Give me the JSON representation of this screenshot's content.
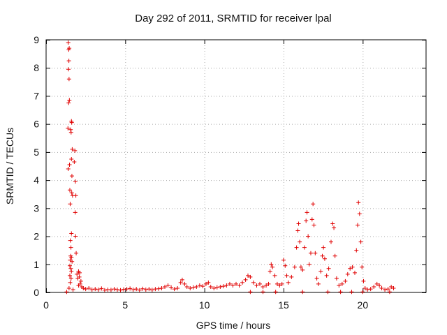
{
  "chart_data": {
    "type": "scatter",
    "title": "Day 292 of 2011, SRMTID for receiver lpal",
    "xlabel": "GPS time / hours",
    "ylabel": "SRMTID / TECUs",
    "xlim": [
      0,
      24
    ],
    "ylim": [
      0,
      9
    ],
    "grid": true,
    "marker": "+",
    "marker_color": "#e00000",
    "x_ticks": [
      0,
      5,
      10,
      15,
      20
    ],
    "x_tick_labels": [
      "0",
      "5",
      "10",
      "15",
      "20"
    ],
    "y_ticks": [
      0,
      1,
      2,
      3,
      4,
      5,
      6,
      7,
      8,
      9
    ],
    "y_tick_labels": [
      "0",
      "1",
      "2",
      "3",
      "4",
      "5",
      "6",
      "7",
      "8",
      "9"
    ],
    "series": [
      {
        "name": "SRMTID",
        "points": [
          [
            1.4,
            8.9
          ],
          [
            1.43,
            8.65
          ],
          [
            1.46,
            8.7
          ],
          [
            1.44,
            8.25
          ],
          [
            1.41,
            7.95
          ],
          [
            1.45,
            7.6
          ],
          [
            1.42,
            6.75
          ],
          [
            1.47,
            6.85
          ],
          [
            1.6,
            6.1
          ],
          [
            1.62,
            6.05
          ],
          [
            1.38,
            5.85
          ],
          [
            1.55,
            5.8
          ],
          [
            1.58,
            5.7
          ],
          [
            1.65,
            5.1
          ],
          [
            1.82,
            5.05
          ],
          [
            1.78,
            4.65
          ],
          [
            1.48,
            4.55
          ],
          [
            1.6,
            4.75
          ],
          [
            1.4,
            4.4
          ],
          [
            1.63,
            4.15
          ],
          [
            1.85,
            3.95
          ],
          [
            1.5,
            3.65
          ],
          [
            1.62,
            3.55
          ],
          [
            1.67,
            3.45
          ],
          [
            1.88,
            3.45
          ],
          [
            1.52,
            3.15
          ],
          [
            1.84,
            2.85
          ],
          [
            1.6,
            2.1
          ],
          [
            1.86,
            2.0
          ],
          [
            1.53,
            1.85
          ],
          [
            1.57,
            1.6
          ],
          [
            1.9,
            1.4
          ],
          [
            1.55,
            1.3
          ],
          [
            1.6,
            1.25
          ],
          [
            1.52,
            1.15
          ],
          [
            1.64,
            1.1
          ],
          [
            1.5,
            0.95
          ],
          [
            1.56,
            0.85
          ],
          [
            1.6,
            0.75
          ],
          [
            1.5,
            0.6
          ],
          [
            1.58,
            0.5
          ],
          [
            1.52,
            0.35
          ],
          [
            1.45,
            0.15
          ],
          [
            1.3,
            0.02
          ],
          [
            1.7,
            0.1
          ],
          [
            1.95,
            0.65
          ],
          [
            2.05,
            0.75
          ],
          [
            2.12,
            0.7
          ],
          [
            2.0,
            0.5
          ],
          [
            2.1,
            0.55
          ],
          [
            2.2,
            0.4
          ],
          [
            2.15,
            0.3
          ],
          [
            2.05,
            0.25
          ],
          [
            2.25,
            0.2
          ],
          [
            2.35,
            0.15
          ],
          [
            2.5,
            0.12
          ],
          [
            2.7,
            0.15
          ],
          [
            2.9,
            0.1
          ],
          [
            3.1,
            0.12
          ],
          [
            3.3,
            0.1
          ],
          [
            3.5,
            0.14
          ],
          [
            3.7,
            0.08
          ],
          [
            3.9,
            0.1
          ],
          [
            4.1,
            0.09
          ],
          [
            4.3,
            0.12
          ],
          [
            4.5,
            0.1
          ],
          [
            4.7,
            0.08
          ],
          [
            4.9,
            0.11
          ],
          [
            5.1,
            0.12
          ],
          [
            5.3,
            0.14
          ],
          [
            5.5,
            0.1
          ],
          [
            5.7,
            0.12
          ],
          [
            5.9,
            0.08
          ],
          [
            6.1,
            0.13
          ],
          [
            6.3,
            0.1
          ],
          [
            6.5,
            0.12
          ],
          [
            6.7,
            0.09
          ],
          [
            6.9,
            0.12
          ],
          [
            7.1,
            0.13
          ],
          [
            7.3,
            0.15
          ],
          [
            7.5,
            0.2
          ],
          [
            7.7,
            0.25
          ],
          [
            7.9,
            0.18
          ],
          [
            8.1,
            0.12
          ],
          [
            8.3,
            0.15
          ],
          [
            8.5,
            0.35
          ],
          [
            8.6,
            0.45
          ],
          [
            8.75,
            0.3
          ],
          [
            8.9,
            0.2
          ],
          [
            9.1,
            0.15
          ],
          [
            9.3,
            0.18
          ],
          [
            9.5,
            0.2
          ],
          [
            9.7,
            0.25
          ],
          [
            9.9,
            0.22
          ],
          [
            10.1,
            0.3
          ],
          [
            10.25,
            0.35
          ],
          [
            10.4,
            0.2
          ],
          [
            10.6,
            0.15
          ],
          [
            10.8,
            0.18
          ],
          [
            11.0,
            0.2
          ],
          [
            11.2,
            0.22
          ],
          [
            11.4,
            0.25
          ],
          [
            11.6,
            0.3
          ],
          [
            11.8,
            0.25
          ],
          [
            12.0,
            0.3
          ],
          [
            12.2,
            0.25
          ],
          [
            12.4,
            0.35
          ],
          [
            12.6,
            0.45
          ],
          [
            12.75,
            0.6
          ],
          [
            12.9,
            0.55
          ],
          [
            13.1,
            0.35
          ],
          [
            13.3,
            0.25
          ],
          [
            13.5,
            0.3
          ],
          [
            13.7,
            0.2
          ],
          [
            13.9,
            0.25
          ],
          [
            14.05,
            0.3
          ],
          [
            14.15,
            0.75
          ],
          [
            14.22,
            1.0
          ],
          [
            14.3,
            0.9
          ],
          [
            14.45,
            0.6
          ],
          [
            14.6,
            0.3
          ],
          [
            14.75,
            0.25
          ],
          [
            14.9,
            0.3
          ],
          [
            15.0,
            1.15
          ],
          [
            15.1,
            0.95
          ],
          [
            15.2,
            0.6
          ],
          [
            15.3,
            0.35
          ],
          [
            15.5,
            0.55
          ],
          [
            15.7,
            0.9
          ],
          [
            15.82,
            1.6
          ],
          [
            15.9,
            2.2
          ],
          [
            15.95,
            2.45
          ],
          [
            16.02,
            1.8
          ],
          [
            16.1,
            0.9
          ],
          [
            16.2,
            0.8
          ],
          [
            16.32,
            1.6
          ],
          [
            16.42,
            2.55
          ],
          [
            16.48,
            2.85
          ],
          [
            16.55,
            2.0
          ],
          [
            16.62,
            1.0
          ],
          [
            16.72,
            1.4
          ],
          [
            16.8,
            2.6
          ],
          [
            16.86,
            3.15
          ],
          [
            16.92,
            2.4
          ],
          [
            17.0,
            1.4
          ],
          [
            17.1,
            0.5
          ],
          [
            17.2,
            0.3
          ],
          [
            17.35,
            0.75
          ],
          [
            17.45,
            1.3
          ],
          [
            17.52,
            1.6
          ],
          [
            17.6,
            1.2
          ],
          [
            17.72,
            0.6
          ],
          [
            17.85,
            0.85
          ],
          [
            18.0,
            1.8
          ],
          [
            18.1,
            2.45
          ],
          [
            18.18,
            2.3
          ],
          [
            18.25,
            1.3
          ],
          [
            18.35,
            0.5
          ],
          [
            18.5,
            0.25
          ],
          [
            18.7,
            0.3
          ],
          [
            18.9,
            0.4
          ],
          [
            19.05,
            0.65
          ],
          [
            19.2,
            0.85
          ],
          [
            19.35,
            0.9
          ],
          [
            19.5,
            0.7
          ],
          [
            19.6,
            1.5
          ],
          [
            19.68,
            2.4
          ],
          [
            19.73,
            3.2
          ],
          [
            19.8,
            2.8
          ],
          [
            19.88,
            1.8
          ],
          [
            19.95,
            0.9
          ],
          [
            20.05,
            0.4
          ],
          [
            20.15,
            0.15
          ],
          [
            20.3,
            0.1
          ],
          [
            20.5,
            0.12
          ],
          [
            20.7,
            0.2
          ],
          [
            20.9,
            0.3
          ],
          [
            21.05,
            0.25
          ],
          [
            21.2,
            0.15
          ],
          [
            21.4,
            0.1
          ],
          [
            21.6,
            0.12
          ],
          [
            21.8,
            0.2
          ],
          [
            21.95,
            0.15
          ],
          [
            18.6,
            0.02
          ],
          [
            19.3,
            0.02
          ],
          [
            20.0,
            0.02
          ],
          [
            16.2,
            0.02
          ],
          [
            17.8,
            0.02
          ],
          [
            13.7,
            0.02
          ],
          [
            14.5,
            0.02
          ],
          [
            12.9,
            0.02
          ],
          [
            21.7,
            0.02
          ]
        ]
      }
    ]
  }
}
